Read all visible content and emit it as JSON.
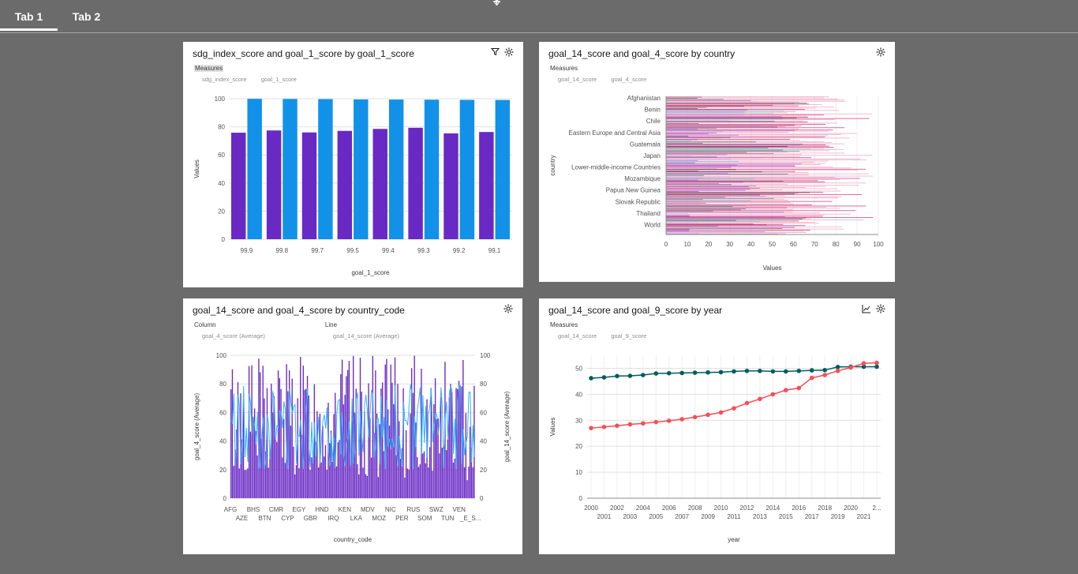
{
  "tabs": [
    {
      "label": "Tab 1",
      "active": true
    },
    {
      "label": "Tab 2",
      "active": false
    }
  ],
  "colors": {
    "background": "#6b6b6b",
    "purple": "#6929c4",
    "blue": "#1192e8",
    "cyan": "#33b1ff",
    "teal": "#005d5d",
    "red": "#fa4d56",
    "pink": "#d12771",
    "lightpink": "#ee9cb9"
  },
  "cards": {
    "c1": {
      "title": "sdg_index_score and goal_1_score by goal_1_score",
      "legend_title": "Measures",
      "legend_items": [
        "sdg_index_score",
        "goal_1_score"
      ],
      "icons": [
        "filter-icon",
        "settings-icon"
      ]
    },
    "c2": {
      "title": "goal_14_score and goal_4_score by country",
      "legend_title": "Measures",
      "legend_items": [
        "goal_14_score",
        "goal_4_score"
      ],
      "icons": [
        "settings-icon"
      ]
    },
    "c3": {
      "title": "goal_14_score and goal_4_score by country_code",
      "legend_col_title": "Column",
      "legend_col_item": "goal_4_score (Average)",
      "legend_line_title": "Line",
      "legend_line_item": "goal_14_score (Average)",
      "icons": [
        "settings-icon"
      ]
    },
    "c4": {
      "title": "goal_14_score and goal_9_score by year",
      "legend_title": "Measures",
      "legend_items": [
        "goal_14_score",
        "goal_9_score"
      ],
      "icons": [
        "line-chart-icon",
        "settings-icon"
      ]
    }
  },
  "chart_data": [
    {
      "type": "bar",
      "categories": [
        "99.9",
        "99.8",
        "99.7",
        "99.5",
        "99.4",
        "99.3",
        "99.2",
        "99.1"
      ],
      "series": [
        {
          "name": "sdg_index_score",
          "values": [
            75.8,
            77.4,
            76.0,
            77.1,
            78.5,
            79.3,
            75.3,
            76.3
          ]
        },
        {
          "name": "goal_1_score",
          "values": [
            99.9,
            99.8,
            99.7,
            99.5,
            99.4,
            99.3,
            99.2,
            99.1
          ]
        }
      ],
      "xlabel": "goal_1_score",
      "ylabel": "Values",
      "ylim": [
        0,
        100
      ],
      "yticks": [
        "0",
        "20",
        "40",
        "60",
        "80",
        "100"
      ]
    },
    {
      "type": "bar",
      "orientation": "horizontal",
      "category_labels": [
        "Afghanistan",
        "Benin",
        "Chile",
        "Eastern Europe and Central Asia",
        "Guatemala",
        "Japan",
        "Lower-middle-income Countries",
        "Mozambique",
        "Papua New Guinea",
        "Slovak Republic",
        "Thailand",
        "World"
      ],
      "xlabel": "Values",
      "ylabel": "country",
      "xlim": [
        0,
        100
      ],
      "xticks": [
        "0",
        "10",
        "20",
        "30",
        "40",
        "50",
        "60",
        "70",
        "80",
        "90",
        "100"
      ]
    },
    {
      "type": "bar",
      "combo": "column+line",
      "x_labels_row1": [
        "AFG",
        "BHS",
        "CMR",
        "EGY",
        "HND",
        "KEN",
        "MDV",
        "NIC",
        "RUS",
        "SWZ",
        "VEN"
      ],
      "x_labels_row2": [
        "AZE",
        "BTN",
        "CYP",
        "GBR",
        "IRQ",
        "LKA",
        "MOZ",
        "PER",
        "SOM",
        "TUN",
        "_E_S..."
      ],
      "xlabel": "country_code",
      "ylabel": "goal_4_score (Average)",
      "ylabel_right": "goal_14_score (Average)",
      "ylim": [
        0,
        100
      ],
      "yticks": [
        "0",
        "20",
        "40",
        "60",
        "80",
        "100"
      ]
    },
    {
      "type": "line",
      "x": [
        2000,
        2001,
        2002,
        2003,
        2004,
        2005,
        2006,
        2007,
        2008,
        2009,
        2010,
        2011,
        2012,
        2013,
        2014,
        2015,
        2016,
        2017,
        2018,
        2019,
        2020,
        2021,
        2022
      ],
      "x_labels_row1": [
        "2000",
        "2002",
        "2004",
        "2006",
        "2008",
        "2010",
        "2012",
        "2014",
        "2016",
        "2018",
        "2020",
        "2..."
      ],
      "x_labels_row2": [
        "2001",
        "2003",
        "2005",
        "2007",
        "2009",
        "2011",
        "2013",
        "2015",
        "2017",
        "2019",
        "2021"
      ],
      "series": [
        {
          "name": "goal_14_score",
          "values": [
            46.2,
            46.5,
            47.0,
            47.1,
            47.4,
            48.0,
            48.1,
            48.2,
            48.3,
            48.4,
            48.5,
            48.8,
            49.0,
            49.0,
            48.8,
            48.8,
            49.0,
            49.2,
            49.3,
            50.5,
            50.6,
            50.6,
            50.6
          ]
        },
        {
          "name": "goal_9_score",
          "values": [
            27.0,
            27.4,
            27.9,
            28.4,
            28.8,
            29.3,
            29.8,
            30.4,
            31.2,
            32.1,
            33.0,
            34.6,
            36.6,
            38.2,
            40.0,
            41.6,
            42.4,
            46.3,
            47.4,
            49.0,
            50.3,
            51.9,
            52.1
          ]
        }
      ],
      "xlabel": "year",
      "ylabel": "Values",
      "ylim": [
        0,
        55
      ],
      "yticks": [
        "0",
        "10",
        "20",
        "30",
        "40",
        "50"
      ]
    }
  ]
}
